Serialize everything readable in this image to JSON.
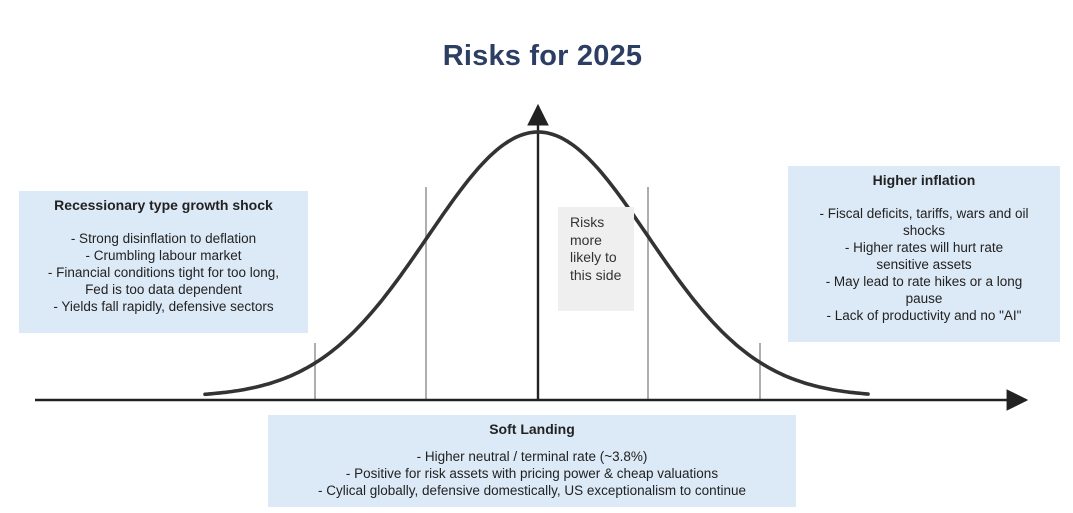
{
  "title": "Risks for 2025",
  "left_box": {
    "title": "Recessionary type growth shock",
    "items": [
      "- Strong disinflation to deflation",
      "- Crumbling labour market",
      "- Financial conditions tight for too long, Fed is too data dependent",
      "- Yields fall rapidly, defensive sectors"
    ]
  },
  "right_box": {
    "title": "Higher inflation",
    "items": [
      "- Fiscal deficits, tariffs, wars and oil shocks",
      "- Higher rates will hurt rate sensitive assets",
      "- May lead to rate hikes or a long pause",
      "- Lack of productivity and no \"AI\""
    ]
  },
  "bottom_box": {
    "title": "Soft Landing",
    "items": [
      "- Higher neutral / terminal rate (~3.8%)",
      "- Positive for risk assets with pricing power & cheap valuations",
      "- Cylical globally, defensive domestically, US exceptionalism to continue"
    ]
  },
  "note": "Risks more likely to this side",
  "colors": {
    "title": "#2c3e63",
    "box_background": "#dce9f6",
    "note_background": "#efefef",
    "curve": "#333333",
    "axis": "#222222",
    "divider": "#9a9a9a"
  }
}
